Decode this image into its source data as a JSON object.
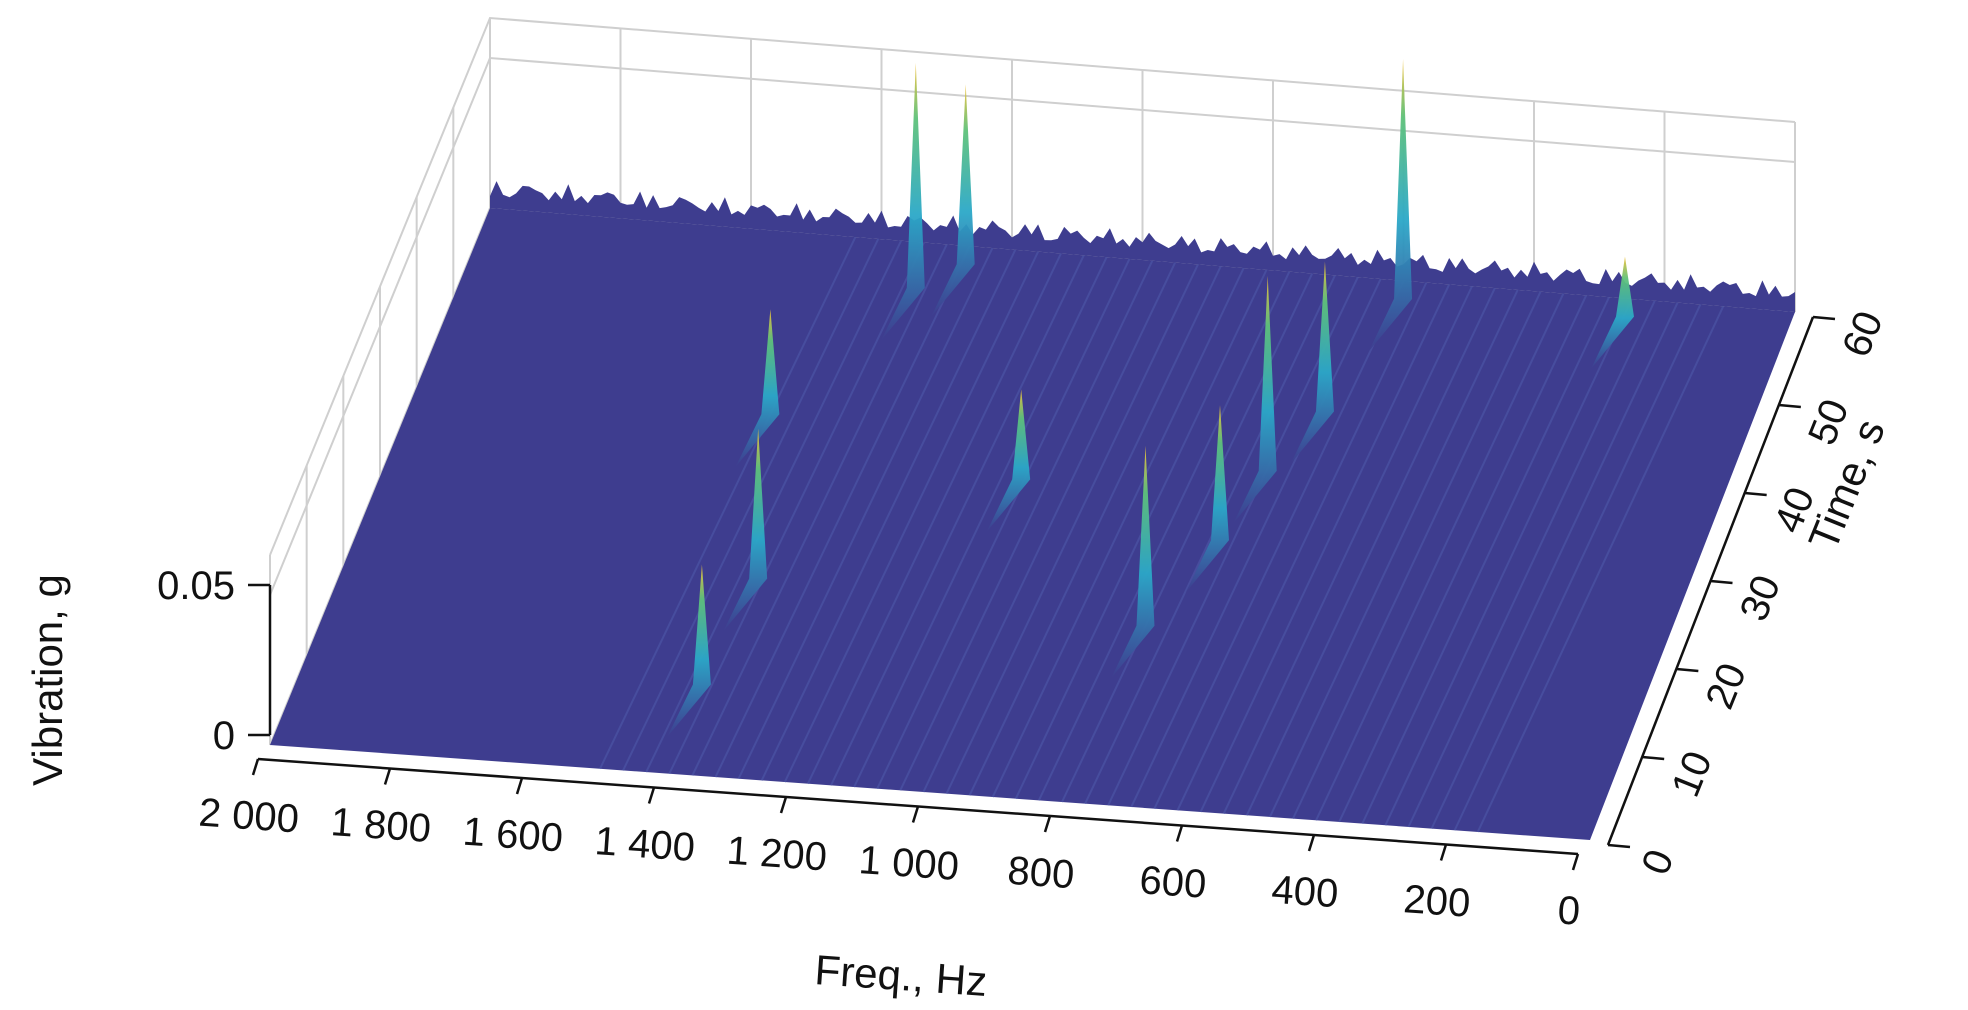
{
  "chart_data": {
    "type": "surface3d",
    "title": "",
    "xlabel": "Freq., Hz",
    "ylabel": "Time, s",
    "zlabel": "Vibration, g",
    "xlim": [
      0,
      2000
    ],
    "ylim": [
      0,
      60
    ],
    "zlim": [
      0,
      0.05
    ],
    "x_ticks": [
      "2 000",
      "1 800",
      "1 600",
      "1 400",
      "1 200",
      "1 000",
      "800",
      "600",
      "400",
      "200",
      "0"
    ],
    "y_ticks": [
      "0",
      "10",
      "20",
      "30",
      "40",
      "50",
      "60"
    ],
    "z_ticks": [
      "0",
      "0.05"
    ],
    "grid": true,
    "colormap": "parula",
    "colors": {
      "low": "#3e3d8f",
      "mid": "#2ba8c8",
      "high": "#f2c23a"
    },
    "peaks": [
      {
        "freq_hz": 780,
        "time_s": 20,
        "vibration_g": 0.06
      },
      {
        "freq_hz": 720,
        "time_s": 30,
        "vibration_g": 0.045
      },
      {
        "freq_hz": 690,
        "time_s": 38,
        "vibration_g": 0.065
      },
      {
        "freq_hz": 640,
        "time_s": 45,
        "vibration_g": 0.05
      },
      {
        "freq_hz": 590,
        "time_s": 58,
        "vibration_g": 0.08
      },
      {
        "freq_hz": 1380,
        "time_s": 22,
        "vibration_g": 0.05
      },
      {
        "freq_hz": 1400,
        "time_s": 10,
        "vibration_g": 0.04
      },
      {
        "freq_hz": 1320,
        "time_s": 55,
        "vibration_g": 0.075
      },
      {
        "freq_hz": 1260,
        "time_s": 58,
        "vibration_g": 0.06
      },
      {
        "freq_hz": 1460,
        "time_s": 40,
        "vibration_g": 0.035
      },
      {
        "freq_hz": 1050,
        "time_s": 35,
        "vibration_g": 0.03
      },
      {
        "freq_hz": 250,
        "time_s": 58,
        "vibration_g": 0.02
      }
    ]
  }
}
